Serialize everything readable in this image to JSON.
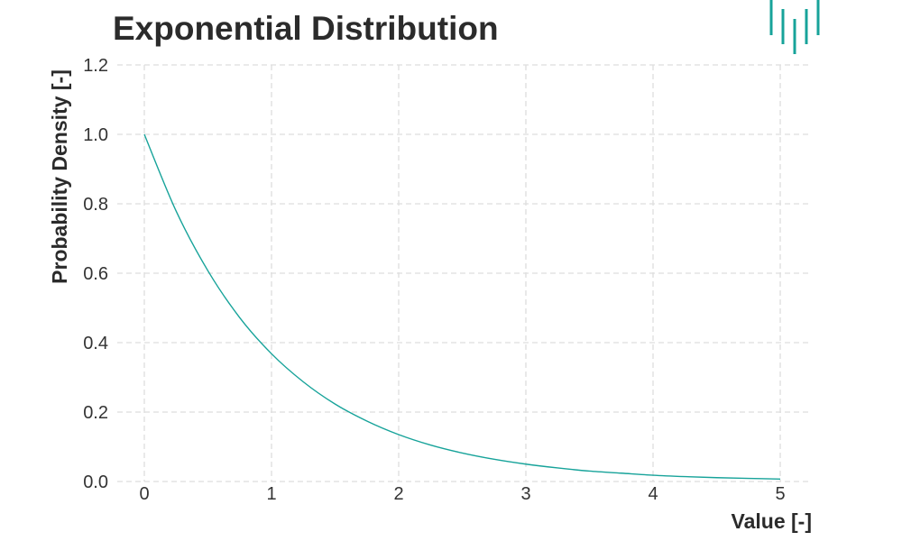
{
  "chart_data": {
    "type": "line",
    "title": "Exponential Distribution",
    "xlabel": "Value [-]",
    "ylabel": "Probability Density [-]",
    "xlim": [
      0,
      5
    ],
    "ylim": [
      0,
      1.2
    ],
    "x_ticks": [
      "0",
      "1",
      "2",
      "3",
      "4",
      "5"
    ],
    "y_ticks": [
      "0.0",
      "0.2",
      "0.4",
      "0.6",
      "0.8",
      "1.0",
      "1.2"
    ],
    "grid": true,
    "legend": "none",
    "series": [
      {
        "color": "#17a39a",
        "x": [
          0,
          0.25,
          0.5,
          0.75,
          1,
          1.25,
          1.5,
          1.75,
          2,
          2.25,
          2.5,
          2.75,
          3,
          3.25,
          3.5,
          3.75,
          4,
          4.25,
          4.5,
          4.75,
          5
        ],
        "y": [
          1.0,
          0.779,
          0.607,
          0.472,
          0.368,
          0.287,
          0.223,
          0.174,
          0.135,
          0.105,
          0.082,
          0.064,
          0.05,
          0.039,
          0.03,
          0.024,
          0.018,
          0.014,
          0.011,
          0.009,
          0.007
        ]
      }
    ]
  },
  "logo": {
    "name": "bars-logo-icon",
    "color": "#17a39a"
  }
}
